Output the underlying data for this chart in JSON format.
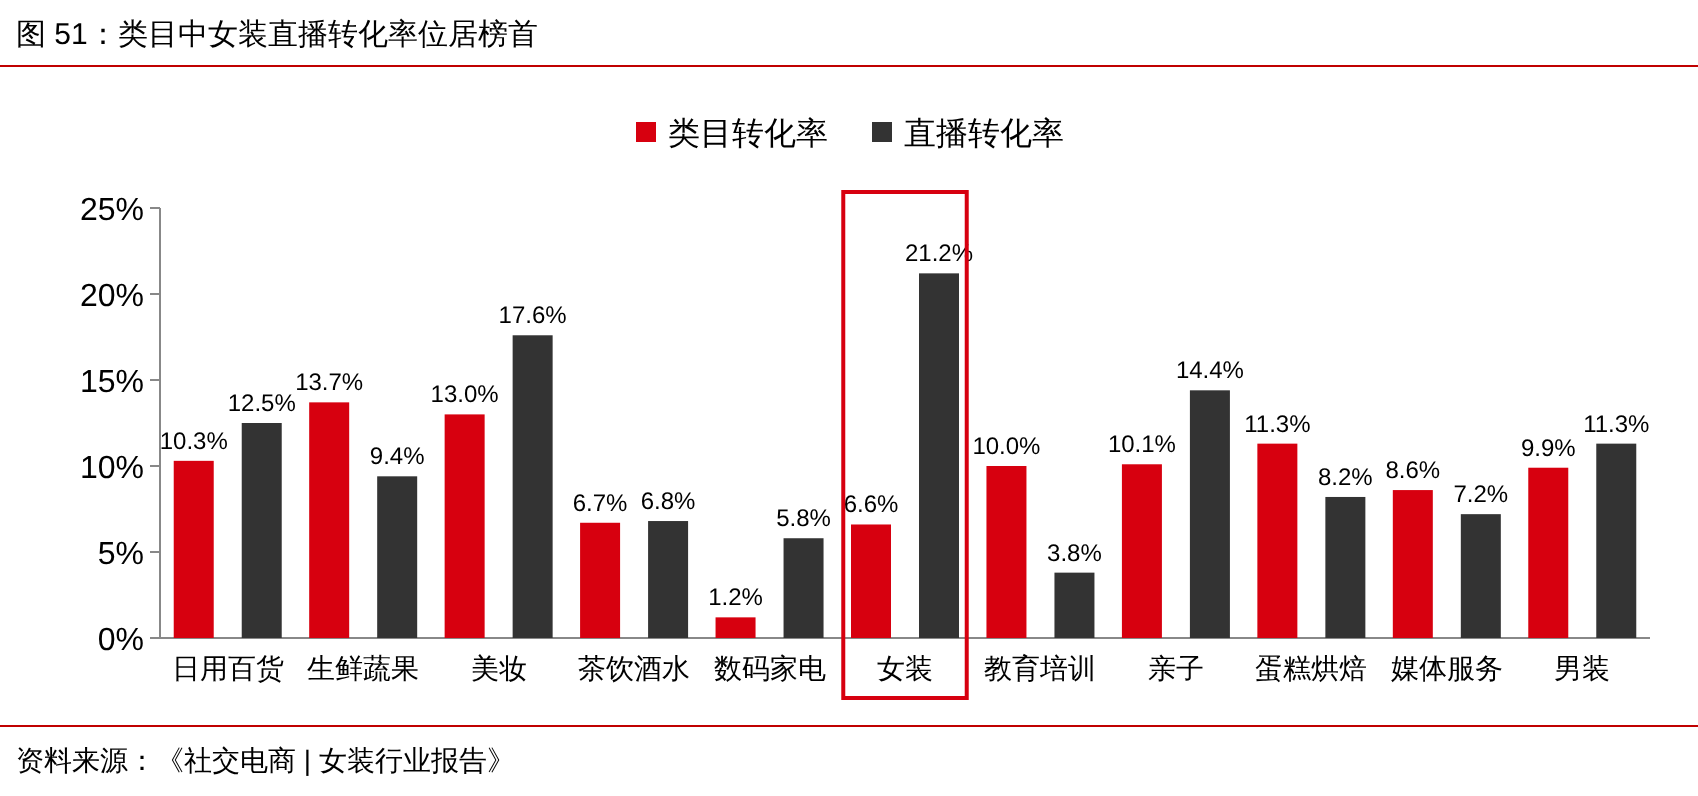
{
  "chart_data": {
    "type": "bar",
    "title": "图 51：类目中女装直播转化率位居榜首",
    "categories": [
      "日用百货",
      "生鲜蔬果",
      "美妆",
      "茶饮酒水",
      "数码家电",
      "女装",
      "教育培训",
      "亲子",
      "蛋糕烘焙",
      "媒体服务",
      "男装"
    ],
    "series": [
      {
        "name": "类目转化率",
        "color": "#d7000f",
        "values": [
          10.3,
          13.7,
          13.0,
          6.7,
          1.2,
          6.6,
          10.0,
          10.1,
          11.3,
          8.6,
          9.9
        ]
      },
      {
        "name": "直播转化率",
        "color": "#333333",
        "values": [
          12.5,
          9.4,
          17.6,
          6.8,
          5.8,
          21.2,
          3.8,
          14.4,
          8.2,
          7.2,
          11.3
        ]
      }
    ],
    "ylim": [
      0,
      25
    ],
    "yticks": [
      {
        "value": 0,
        "label": "0%"
      },
      {
        "value": 5,
        "label": "5%"
      },
      {
        "value": 10,
        "label": "10%"
      },
      {
        "value": 15,
        "label": "15%"
      },
      {
        "value": 20,
        "label": "20%"
      },
      {
        "value": 25,
        "label": "25%"
      }
    ],
    "value_labels": [
      [
        "10.3%",
        "13.7%",
        "13.0%",
        "6.7%",
        "1.2%",
        "6.6%",
        "10.0%",
        "10.1%",
        "11.3%",
        "8.6%",
        "9.9%"
      ],
      [
        "12.5%",
        "9.4%",
        "17.6%",
        "6.8%",
        "5.8%",
        "21.2%",
        "3.8%",
        "14.4%",
        "8.2%",
        "7.2%",
        "11.3%"
      ]
    ],
    "legend": "top",
    "grid": false,
    "annotations": [
      "资料来源：《社交电商 | 女装行业报告》"
    ]
  }
}
